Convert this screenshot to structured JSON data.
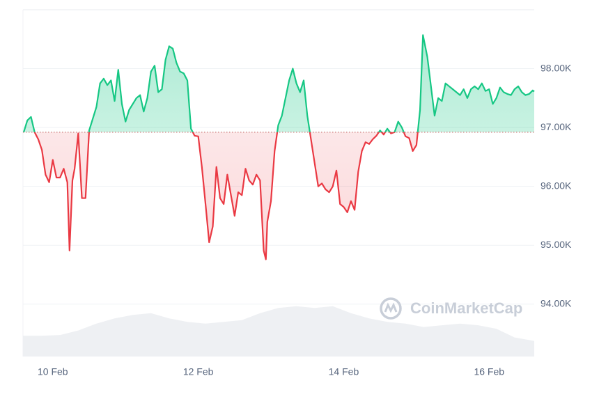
{
  "chart_data": {
    "type": "baseline-line",
    "watermark": "CoinMarketCap",
    "xlim": [
      9.59,
      16.62
    ],
    "xticks": [
      {
        "value": 10,
        "label": "10 Feb"
      },
      {
        "value": 12,
        "label": "12 Feb"
      },
      {
        "value": 14,
        "label": "14 Feb"
      },
      {
        "value": 16,
        "label": "16 Feb"
      }
    ],
    "ylim": [
      93110,
      99000
    ],
    "yticks": [
      {
        "value": 94000,
        "label": "94.00K"
      },
      {
        "value": 95000,
        "label": "95.00K"
      },
      {
        "value": 96000,
        "label": "96.00K"
      },
      {
        "value": 97000,
        "label": "97.00K"
      },
      {
        "value": 98000,
        "label": "98.00K"
      }
    ],
    "grid": true,
    "price": {
      "baseline": 96920,
      "up_color": "#16c784",
      "down_color": "#ea3943",
      "x": [
        9.6,
        9.65,
        9.7,
        9.75,
        9.8,
        9.85,
        9.9,
        9.95,
        10.0,
        10.05,
        10.1,
        10.15,
        10.2,
        10.23,
        10.27,
        10.3,
        10.35,
        10.4,
        10.45,
        10.5,
        10.55,
        10.6,
        10.65,
        10.7,
        10.75,
        10.8,
        10.85,
        10.9,
        10.95,
        11.0,
        11.05,
        11.1,
        11.15,
        11.2,
        11.25,
        11.3,
        11.35,
        11.4,
        11.45,
        11.5,
        11.55,
        11.6,
        11.65,
        11.7,
        11.75,
        11.8,
        11.85,
        11.9,
        11.95,
        12.0,
        12.05,
        12.1,
        12.15,
        12.2,
        12.25,
        12.3,
        12.35,
        12.4,
        12.45,
        12.5,
        12.55,
        12.6,
        12.65,
        12.7,
        12.75,
        12.8,
        12.85,
        12.9,
        12.93,
        12.95,
        13.0,
        13.05,
        13.1,
        13.15,
        13.2,
        13.25,
        13.3,
        13.35,
        13.4,
        13.45,
        13.5,
        13.55,
        13.6,
        13.65,
        13.7,
        13.75,
        13.8,
        13.85,
        13.9,
        13.95,
        14.0,
        14.05,
        14.1,
        14.15,
        14.2,
        14.25,
        14.3,
        14.35,
        14.4,
        14.45,
        14.5,
        14.55,
        14.6,
        14.65,
        14.7,
        14.75,
        14.8,
        14.85,
        14.9,
        14.95,
        15.0,
        15.05,
        15.09,
        15.15,
        15.2,
        15.25,
        15.3,
        15.35,
        15.4,
        15.45,
        15.5,
        15.55,
        15.6,
        15.65,
        15.7,
        15.75,
        15.8,
        15.85,
        15.9,
        15.95,
        16.0,
        16.05,
        16.1,
        16.15,
        16.2,
        16.25,
        16.3,
        16.35,
        16.4,
        16.45,
        16.5,
        16.55,
        16.6,
        16.62
      ],
      "values": [
        96920,
        97120,
        97180,
        96920,
        96800,
        96620,
        96200,
        96070,
        96450,
        96150,
        96150,
        96300,
        96070,
        94910,
        96100,
        96300,
        96900,
        95800,
        95800,
        96950,
        97150,
        97350,
        97750,
        97830,
        97720,
        97800,
        97450,
        97980,
        97400,
        97100,
        97300,
        97400,
        97500,
        97550,
        97270,
        97500,
        97950,
        98050,
        97600,
        97650,
        98150,
        98380,
        98340,
        98100,
        97950,
        97920,
        97800,
        96980,
        96860,
        96850,
        96330,
        95700,
        95050,
        95320,
        96330,
        95800,
        95700,
        96200,
        95850,
        95500,
        95900,
        95850,
        96300,
        96100,
        96030,
        96200,
        96100,
        94910,
        94760,
        95400,
        95750,
        96600,
        97040,
        97200,
        97500,
        97800,
        98000,
        97750,
        97600,
        97800,
        97200,
        96800,
        96400,
        96000,
        96050,
        95950,
        95900,
        96000,
        96270,
        95700,
        95650,
        95560,
        95750,
        95600,
        96250,
        96600,
        96750,
        96720,
        96800,
        96860,
        96950,
        96880,
        96980,
        96900,
        96920,
        97100,
        97000,
        96850,
        96820,
        96600,
        96700,
        97300,
        98570,
        98200,
        97700,
        97200,
        97500,
        97450,
        97750,
        97700,
        97650,
        97600,
        97550,
        97650,
        97500,
        97650,
        97700,
        97650,
        97750,
        97620,
        97650,
        97400,
        97500,
        97680,
        97600,
        97570,
        97550,
        97650,
        97700,
        97600,
        97550,
        97570,
        97630,
        97610
      ]
    },
    "volume": {
      "color": "#eef0f3",
      "axis": "y2",
      "y2lim": [
        0,
        100
      ],
      "x": [
        9.59,
        9.85,
        10.1,
        10.35,
        10.6,
        10.85,
        11.1,
        11.35,
        11.6,
        11.85,
        12.1,
        12.35,
        12.6,
        12.85,
        13.1,
        13.35,
        13.6,
        13.85,
        14.1,
        14.35,
        14.6,
        14.85,
        15.1,
        15.35,
        15.6,
        15.85,
        16.1,
        16.35,
        16.62
      ],
      "values": [
        6,
        6,
        6.2,
        7.5,
        9.5,
        11,
        12,
        12.5,
        11,
        10,
        9.5,
        10,
        10.5,
        12.5,
        14,
        14.5,
        14,
        14.5,
        12.5,
        11,
        10,
        9.5,
        8.5,
        9,
        9.5,
        9,
        8,
        5.5,
        4.5
      ]
    }
  }
}
